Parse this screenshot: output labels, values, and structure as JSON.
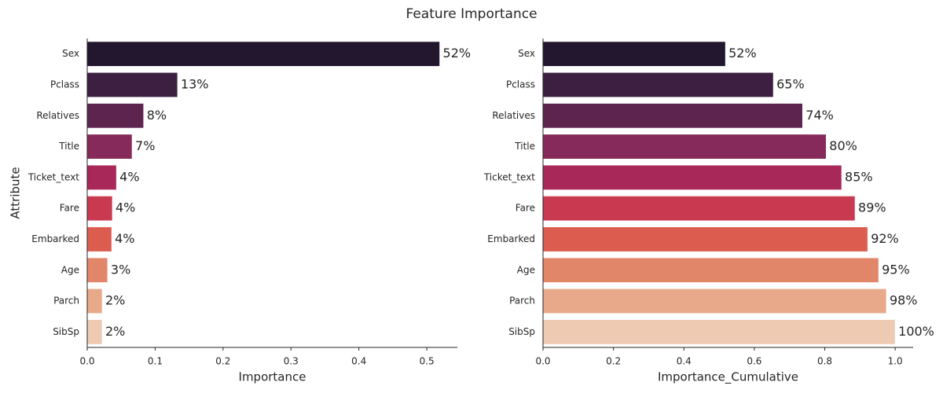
{
  "title": "Feature Importance",
  "chart_data": [
    {
      "type": "barh",
      "xlabel": "Importance",
      "ylabel": "Attribute",
      "categories": [
        "Sex",
        "Pclass",
        "Relatives",
        "Title",
        "Ticket_text",
        "Fare",
        "Embarked",
        "Age",
        "Parch",
        "SibSp"
      ],
      "values": [
        0.519,
        0.133,
        0.083,
        0.066,
        0.043,
        0.037,
        0.036,
        0.03,
        0.022,
        0.022
      ],
      "value_labels": [
        "52%",
        "13%",
        "8%",
        "7%",
        "4%",
        "4%",
        "4%",
        "3%",
        "2%",
        "2%"
      ],
      "colors": [
        "#23172f",
        "#3d1f42",
        "#5e2450",
        "#852a5a",
        "#a9285a",
        "#c93a50",
        "#dc5c50",
        "#e2866a",
        "#e8a98a",
        "#eecab2"
      ],
      "xlim": [
        0,
        0.545
      ],
      "xticks": [
        {
          "value": 0,
          "label": "0.0"
        },
        0.1,
        0.2,
        0.3,
        0.4,
        0.5
      ]
    },
    {
      "type": "barh",
      "xlabel": "Importance_Cumulative",
      "categories": [
        "Sex",
        "Pclass",
        "Relatives",
        "Title",
        "Ticket_text",
        "Fare",
        "Embarked",
        "Age",
        "Parch",
        "SibSp"
      ],
      "values": [
        0.518,
        0.654,
        0.737,
        0.804,
        0.848,
        0.886,
        0.922,
        0.953,
        0.975,
        1.0
      ],
      "value_labels": [
        "52%",
        "65%",
        "74%",
        "80%",
        "85%",
        "89%",
        "92%",
        "95%",
        "98%",
        "100%"
      ],
      "colors": [
        "#23172f",
        "#3d1f42",
        "#5e2450",
        "#852a5a",
        "#a9285a",
        "#c93a50",
        "#dc5c50",
        "#e2866a",
        "#e8a98a",
        "#eecab2"
      ],
      "xlim": [
        0,
        1.051
      ],
      "xticks": [
        {
          "value": 0,
          "label": "0.0"
        },
        0.2,
        0.4,
        0.6,
        0.8,
        {
          "value": 1,
          "label": "1.0"
        }
      ]
    }
  ]
}
